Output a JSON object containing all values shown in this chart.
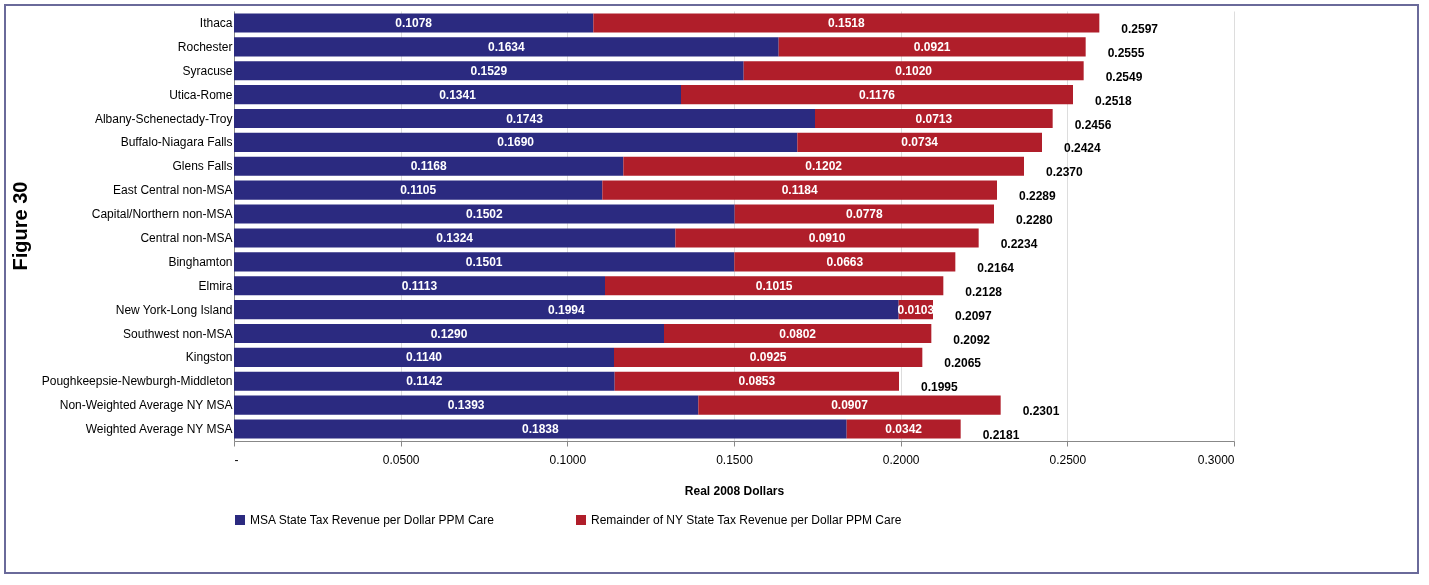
{
  "chart_data": {
    "type": "bar",
    "orientation": "horizontal",
    "stacked": true,
    "title": "Figure 30",
    "xlabel": "Real 2008  Dollars",
    "categories": [
      "Ithaca",
      "Rochester",
      "Syracuse",
      "Utica-Rome",
      "Albany-Schenectady-Troy",
      "Buffalo-Niagara Falls",
      "Glens Falls",
      "East Central non-MSA",
      "Capital/Northern non-MSA",
      "Central non-MSA",
      "Binghamton",
      "Elmira",
      "New York-Long Island",
      "Southwest non-MSA",
      "Kingston",
      "Poughkeepsie-Newburgh-Middleton",
      "Non-Weighted Average NY MSA",
      "Weighted Average NY MSA"
    ],
    "series": [
      {
        "name": "MSA State Tax Revenue per Dollar PPM Care",
        "color": "#2b2a80",
        "values": [
          0.1078,
          0.1634,
          0.1529,
          0.1341,
          0.1743,
          0.169,
          0.1168,
          0.1105,
          0.1502,
          0.1324,
          0.1501,
          0.1113,
          0.1994,
          0.129,
          0.114,
          0.1142,
          0.1393,
          0.1838
        ],
        "value_labels": [
          "0.1078",
          "0.1634",
          "0.1529",
          "0.1341",
          "0.1743",
          "0.1690",
          "0.1168",
          "0.1105",
          "0.1502",
          "0.1324",
          "0.1501",
          "0.1113",
          "0.1994",
          "0.1290",
          "0.1140",
          "0.1142",
          "0.1393",
          "0.1838"
        ]
      },
      {
        "name": "Remainder of NY State Tax Revenue per Dollar PPM Care",
        "color": "#b01e2a",
        "values": [
          0.1518,
          0.0921,
          0.102,
          0.1176,
          0.0713,
          0.0734,
          0.1202,
          0.1184,
          0.0778,
          0.091,
          0.0663,
          0.1015,
          0.0103,
          0.0802,
          0.0925,
          0.0853,
          0.0907,
          0.0342
        ],
        "value_labels": [
          "0.1518",
          "0.0921",
          "0.1020",
          "0.1176",
          "0.0713",
          "0.0734",
          "0.1202",
          "0.1184",
          "0.0778",
          "0.0910",
          "0.0663",
          "0.1015",
          "0.0103",
          "0.0802",
          "0.0925",
          "0.0853",
          "0.0907",
          "0.0342"
        ]
      }
    ],
    "totals": [
      "0.2597",
      "0.2555",
      "0.2549",
      "0.2518",
      "0.2456",
      "0.2424",
      "0.2370",
      "0.2289",
      "0.2280",
      "0.2234",
      "0.2164",
      "0.2128",
      "0.2097",
      "0.2092",
      "0.2065",
      "0.1995",
      "0.2301",
      "0.2181"
    ],
    "xlim": [
      0,
      0.3
    ],
    "xticks": [
      {
        "value": 0,
        "label": "-"
      },
      {
        "value": 0.05,
        "label": "0.0500"
      },
      {
        "value": 0.1,
        "label": "0.1000"
      },
      {
        "value": 0.15,
        "label": "0.1500"
      },
      {
        "value": 0.2,
        "label": "0.2000"
      },
      {
        "value": 0.25,
        "label": "0.2500"
      },
      {
        "value": 0.3,
        "label": "0.3000"
      }
    ],
    "grid": "x",
    "legend": "bottom"
  }
}
